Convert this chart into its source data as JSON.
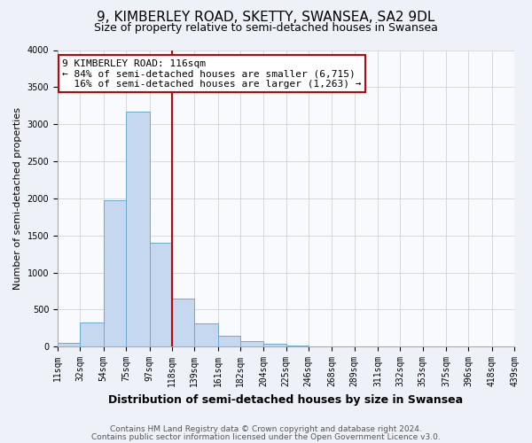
{
  "title": "9, KIMBERLEY ROAD, SKETTY, SWANSEA, SA2 9DL",
  "subtitle": "Size of property relative to semi-detached houses in Swansea",
  "xlabel": "Distribution of semi-detached houses by size in Swansea",
  "ylabel": "Number of semi-detached properties",
  "bin_edges": [
    11,
    32,
    54,
    75,
    97,
    118,
    139,
    161,
    182,
    204,
    225,
    246,
    268,
    289,
    311,
    332,
    353,
    375,
    396,
    418,
    439
  ],
  "bin_heights": [
    55,
    320,
    1975,
    3165,
    1400,
    650,
    315,
    145,
    80,
    35,
    15,
    5,
    5,
    2,
    2,
    1,
    0,
    0,
    0,
    0
  ],
  "bar_color": "#c5d8f0",
  "bar_edge_color": "#6aaad4",
  "vline_color": "#cc0000",
  "vline_x": 118,
  "annotation_line1": "9 KIMBERLEY ROAD: 116sqm",
  "annotation_line2": "← 84% of semi-detached houses are smaller (6,715)",
  "annotation_line3": "  16% of semi-detached houses are larger (1,263) →",
  "annotation_box_color": "#cc0000",
  "ylim": [
    0,
    4000
  ],
  "xlim": [
    11,
    439
  ],
  "tick_labels": [
    "11sqm",
    "32sqm",
    "54sqm",
    "75sqm",
    "97sqm",
    "118sqm",
    "139sqm",
    "161sqm",
    "182sqm",
    "204sqm",
    "225sqm",
    "246sqm",
    "268sqm",
    "289sqm",
    "311sqm",
    "332sqm",
    "353sqm",
    "375sqm",
    "396sqm",
    "418sqm",
    "439sqm"
  ],
  "footer_line1": "Contains HM Land Registry data © Crown copyright and database right 2024.",
  "footer_line2": "Contains public sector information licensed under the Open Government Licence v3.0.",
  "background_color": "#eef2f8",
  "plot_background_color": "#f8fafd",
  "title_fontsize": 11,
  "subtitle_fontsize": 9,
  "tick_fontsize": 7,
  "ylabel_fontsize": 8,
  "xlabel_fontsize": 9,
  "annotation_fontsize": 8,
  "footer_fontsize": 6.5
}
